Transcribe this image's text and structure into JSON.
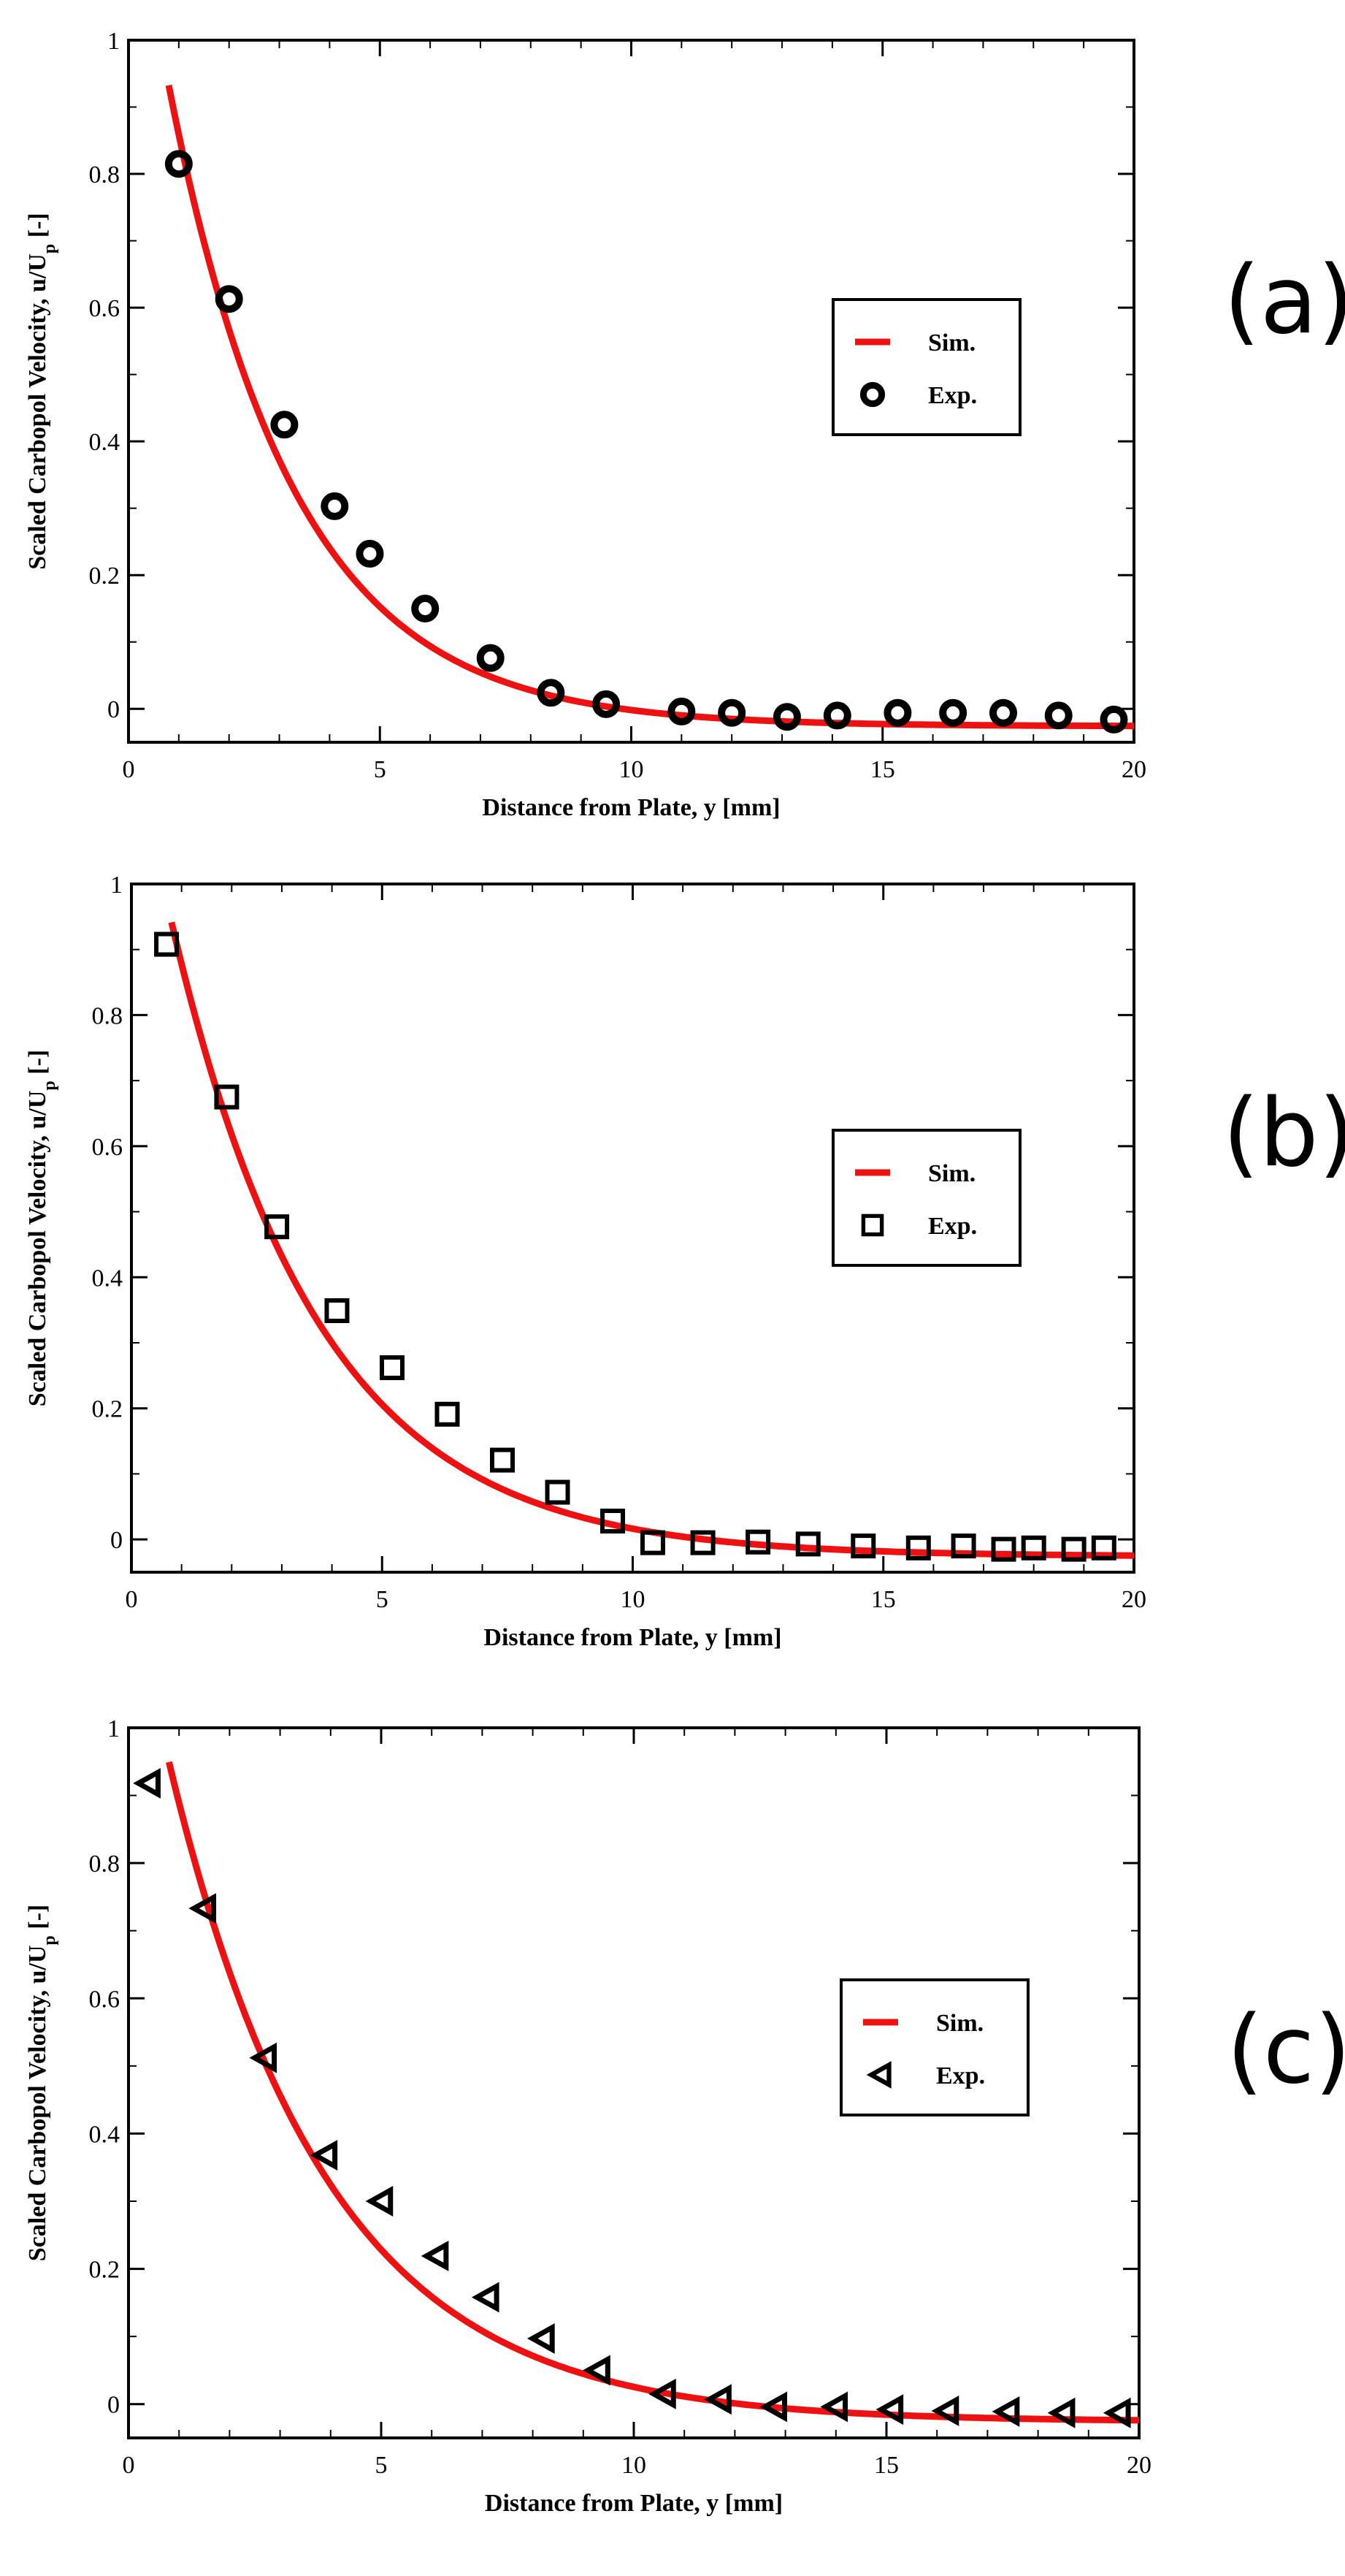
{
  "colors": {
    "simulation": "#ee1111",
    "experiment": "#000000",
    "axis": "#000000"
  },
  "chart_data": [
    {
      "type": "scatter",
      "panel": "(a)",
      "xlabel": "Distance from Plate, y [mm]",
      "ylabel_main": "Scaled Carbopol Velocity, u/U",
      "ylabel_sub": "p",
      "ylabel_tail": " [-]",
      "xlim": [
        0,
        20
      ],
      "ylim": [
        -0.05,
        1
      ],
      "xticks": [
        "0",
        "5",
        "10",
        "15",
        "20"
      ],
      "yticks": [
        "0",
        "0.2",
        "0.4",
        "0.6",
        "0.8",
        "1"
      ],
      "legend": {
        "position": "center-right",
        "sim": "Sim.",
        "exp": "Exp."
      },
      "marker": "circle",
      "sim": {
        "name": "Sim.",
        "A": 1.32,
        "k": 0.4,
        "c": -0.026,
        "x_start": 0.8,
        "x_end": 20
      },
      "exp": {
        "name": "Exp.",
        "x": [
          1.0,
          2.0,
          3.1,
          4.1,
          4.8,
          5.9,
          7.2,
          8.4,
          9.5,
          11.0,
          12.0,
          13.1,
          14.1,
          15.3,
          16.4,
          17.4,
          18.5,
          19.6
        ],
        "y": [
          0.815,
          0.613,
          0.425,
          0.303,
          0.232,
          0.15,
          0.076,
          0.024,
          0.007,
          -0.004,
          -0.006,
          -0.012,
          -0.01,
          -0.006,
          -0.006,
          -0.006,
          -0.01,
          -0.016
        ]
      }
    },
    {
      "type": "scatter",
      "panel": "(b)",
      "xlabel": "Distance from Plate, y [mm]",
      "ylabel_main": "Scaled Carbopol Velocity, u/U",
      "ylabel_sub": "p",
      "ylabel_tail": " [-]",
      "xlim": [
        0,
        20
      ],
      "ylim": [
        -0.05,
        1
      ],
      "xticks": [
        "0",
        "5",
        "10",
        "15",
        "20"
      ],
      "yticks": [
        "0",
        "0.2",
        "0.4",
        "0.6",
        "0.8",
        "1"
      ],
      "legend": {
        "position": "center-right",
        "sim": "Sim.",
        "exp": "Exp."
      },
      "marker": "square",
      "sim": {
        "name": "Sim.",
        "A": 1.27,
        "k": 0.34,
        "c": -0.026,
        "x_start": 0.8,
        "x_end": 20
      },
      "exp": {
        "name": "Exp.",
        "x": [
          0.7,
          1.9,
          2.9,
          4.1,
          5.2,
          6.3,
          7.4,
          8.5,
          9.6,
          10.4,
          11.4,
          12.5,
          13.5,
          14.6,
          15.7,
          16.6,
          17.4,
          18.0,
          18.8,
          19.4
        ],
        "y": [
          0.908,
          0.675,
          0.477,
          0.349,
          0.262,
          0.191,
          0.121,
          0.072,
          0.028,
          -0.005,
          -0.005,
          -0.004,
          -0.007,
          -0.01,
          -0.013,
          -0.01,
          -0.015,
          -0.013,
          -0.015,
          -0.013
        ]
      }
    },
    {
      "type": "scatter",
      "panel": "(c)",
      "xlabel": "Distance from Plate, y [mm]",
      "ylabel_main": "Scaled Carbopol Velocity, u/U",
      "ylabel_sub": "p",
      "ylabel_tail": " [-]",
      "xlim": [
        0,
        20
      ],
      "ylim": [
        -0.05,
        1
      ],
      "xticks": [
        "0",
        "5",
        "10",
        "15",
        "20"
      ],
      "yticks": [
        "0",
        "0.2",
        "0.4",
        "0.6",
        "0.8",
        "1"
      ],
      "legend": {
        "position": "center-right",
        "sim": "Sim.",
        "exp": "Exp."
      },
      "marker": "triangle-left",
      "sim": {
        "name": "Sim.",
        "A": 1.26,
        "k": 0.32,
        "c": -0.026,
        "x_start": 0.8,
        "x_end": 20
      },
      "exp": {
        "name": "Exp.",
        "x": [
          0.4,
          1.5,
          2.7,
          3.9,
          5.0,
          6.1,
          7.1,
          8.2,
          9.3,
          10.6,
          11.7,
          12.8,
          14.0,
          15.1,
          16.2,
          17.4,
          18.5,
          19.6
        ],
        "y": [
          0.918,
          0.733,
          0.512,
          0.368,
          0.3,
          0.219,
          0.158,
          0.097,
          0.05,
          0.015,
          0.007,
          -0.004,
          -0.004,
          -0.008,
          -0.01,
          -0.011,
          -0.013,
          -0.013
        ]
      }
    }
  ]
}
